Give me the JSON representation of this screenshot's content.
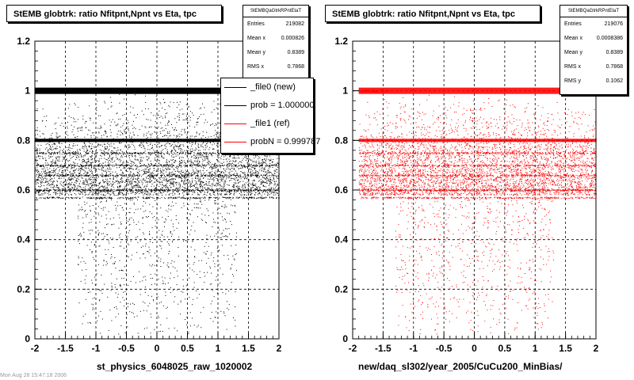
{
  "chart_data": [
    {
      "type": "scatter",
      "title": "StEMB globtrk: ratio Nfitpnt,Npnt vs Eta, tpc",
      "xlabel": "st_physics_6048025_raw_1020002",
      "xlim": [
        -2,
        2
      ],
      "ylim": [
        0,
        1.2
      ],
      "x_ticks": [
        "-2",
        "-1.5",
        "-1",
        "-0.5",
        "0",
        "0.5",
        "1",
        "1.5",
        "2"
      ],
      "y_ticks": [
        "0",
        "0.2",
        "0.4",
        "0.6",
        "0.8",
        "1",
        "1.2"
      ],
      "grid": true,
      "marker_color": "#000000",
      "x_range": [
        -2,
        2
      ],
      "dense_rows": [
        1.0,
        0.8
      ],
      "secondary_rows": [
        0.75,
        0.7,
        0.66,
        0.6,
        0.57
      ],
      "stats": {
        "name": "StEMBQaGtrkRPntEtaT",
        "rows": [
          {
            "label": "Entries",
            "value": "219082"
          },
          {
            "label": "Mean x",
            "value": "0.000826"
          },
          {
            "label": "Mean y",
            "value": "0.8389"
          },
          {
            "label": "RMS x",
            "value": "0.7868"
          }
        ]
      },
      "legend": [
        {
          "label": "_file0 (new)",
          "color": "#000000"
        },
        {
          "label": "prob = 1.000000",
          "color": "#000000"
        },
        {
          "label": "_file1 (ref)",
          "color": "#ff0000"
        },
        {
          "label": "probN = 0.999787",
          "color": "#ff0000"
        }
      ]
    },
    {
      "type": "scatter",
      "title": "StEMB globtrk: ratio Nfitpnt,Npnt vs Eta, tpc",
      "xlabel": "new/daq_sl302/year_2005/CuCu200_MinBias/",
      "xlim": [
        -2,
        2
      ],
      "ylim": [
        0,
        1.2
      ],
      "x_ticks": [
        "-2",
        "-1.5",
        "-1",
        "-0.5",
        "0",
        "0.5",
        "1",
        "1.5",
        "2"
      ],
      "y_ticks": [
        "0",
        "0.2",
        "0.4",
        "0.6",
        "0.8",
        "1",
        "1.2"
      ],
      "grid": true,
      "marker_color": "#ff0000",
      "x_range": [
        -1.9,
        2
      ],
      "dense_rows": [
        1.0,
        0.8
      ],
      "secondary_rows": [
        0.75,
        0.7,
        0.66,
        0.6,
        0.57
      ],
      "stats": {
        "name": "StEMBQaGtrkRPntEtaT",
        "rows": [
          {
            "label": "Entries",
            "value": "219076"
          },
          {
            "label": "Mean x",
            "value": "0.0008386"
          },
          {
            "label": "Mean y",
            "value": "0.8389"
          },
          {
            "label": "RMS x",
            "value": "0.7868"
          },
          {
            "label": "RMS y",
            "value": "0.1062"
          }
        ]
      }
    }
  ],
  "footer": "Mon Aug 28 15:47:18 2006"
}
